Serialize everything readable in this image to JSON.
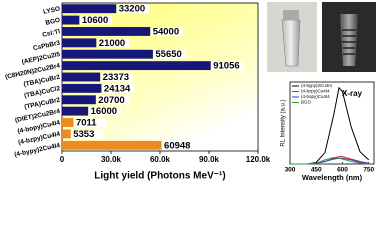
{
  "chart_data": [
    {
      "type": "barh",
      "categories": [
        "LYSO",
        "BGO",
        "CsI:Tl",
        "CsPbBr3",
        "(AEP)2Cu2I5",
        "(C8H20N)2Cu2Br4",
        "(TBA)CuBr2",
        "(TBA)CuCl2",
        "(TPA)CuBr2",
        "(DIET)2Cu2Br4",
        "(4-bopy)Cu4I4",
        "(4-bzpy)Cu4I4",
        "(4-bypy)2Cu4I4"
      ],
      "values": [
        33200,
        10600,
        54000,
        21000,
        55650,
        91056,
        23373,
        24134,
        20700,
        16000,
        7011,
        5353,
        60948
      ],
      "colors": [
        "#16177a",
        "#16177a",
        "#16177a",
        "#16177a",
        "#16177a",
        "#16177a",
        "#16177a",
        "#16177a",
        "#16177a",
        "#16177a",
        "#ee8a22",
        "#ee8a22",
        "#ee8a22"
      ],
      "xlabel": "Light yield (Photons MeV⁻¹)",
      "xlim": [
        0,
        120000
      ],
      "xticks": [
        0,
        {
          "value": 30000,
          "label": "30.0k"
        },
        {
          "value": 60000,
          "label": "60.0k"
        },
        {
          "value": 90000,
          "label": "90.0k"
        },
        {
          "value": 120000,
          "label": "120.0k"
        }
      ]
    },
    {
      "type": "line",
      "title": "X-ray",
      "xlabel": "Wavelength (nm)",
      "ylabel": "RL Intensity (a.u.)",
      "x": [
        300,
        350,
        400,
        450,
        500,
        550,
        580,
        600,
        650,
        700,
        750
      ],
      "xlim": [
        300,
        780
      ],
      "xticks": [
        300,
        450,
        600,
        750
      ],
      "ylim": [
        0,
        1
      ],
      "series": [
        {
          "name": "(4-bypy)2Cu4I4",
          "color": "#000000",
          "values": [
            0,
            0,
            0,
            0.02,
            0.14,
            0.6,
            0.93,
            0.88,
            0.45,
            0.15,
            0.05
          ]
        },
        {
          "name": "(4-bzpy)Cu4I4",
          "color": "#e02020",
          "values": [
            0,
            0,
            0,
            0.01,
            0.03,
            0.07,
            0.09,
            0.09,
            0.06,
            0.03,
            0.01
          ]
        },
        {
          "name": "(4-bopy)Cu4I4",
          "color": "#3040d0",
          "values": [
            0,
            0,
            0,
            0.01,
            0.03,
            0.06,
            0.07,
            0.07,
            0.05,
            0.02,
            0.01
          ]
        },
        {
          "name": "BGO",
          "color": "#2a9a40",
          "values": [
            0,
            0,
            0,
            0.01,
            0.05,
            0.08,
            0.07,
            0.06,
            0.03,
            0.01,
            0
          ]
        }
      ]
    }
  ]
}
